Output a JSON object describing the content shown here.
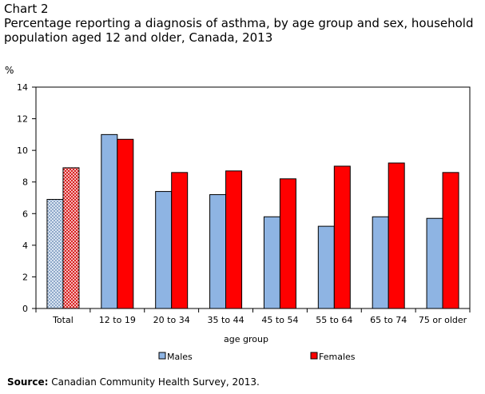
{
  "header": {
    "chart_label": "Chart 2",
    "title": "Percentage reporting a diagnosis of asthma, by age group and sex, household population aged 12 and older, Canada, 2013"
  },
  "source": {
    "label": "Source:",
    "text": "Canadian Community Health Survey, 2013."
  },
  "colors": {
    "males": "#8eb4e3",
    "females": "#ff0000",
    "males_total_hatch": "#dbe7f5",
    "females_total_hatch": "#ffb3b3"
  },
  "chart_data": {
    "type": "bar",
    "title": "Percentage reporting a diagnosis of asthma, by age group and sex, household population aged 12 and older, Canada, 2013",
    "ylabel": "%",
    "xlabel": "age group",
    "ylim": [
      0,
      14
    ],
    "yticks": [
      0,
      2,
      4,
      6,
      8,
      10,
      12,
      14
    ],
    "grid": false,
    "legend": "bottom",
    "categories": [
      "Total",
      "12 to 19",
      "20 to 34",
      "35 to 44",
      "45 to 54",
      "55 to 64",
      "65 to 74",
      "75 or older"
    ],
    "series": [
      {
        "name": "Males",
        "values": [
          6.9,
          11.0,
          7.4,
          7.2,
          5.8,
          5.2,
          5.8,
          5.7
        ]
      },
      {
        "name": "Females",
        "values": [
          8.9,
          10.7,
          8.6,
          8.7,
          8.2,
          9.0,
          9.2,
          8.6
        ]
      }
    ],
    "hatched_categories": [
      "Total"
    ]
  }
}
